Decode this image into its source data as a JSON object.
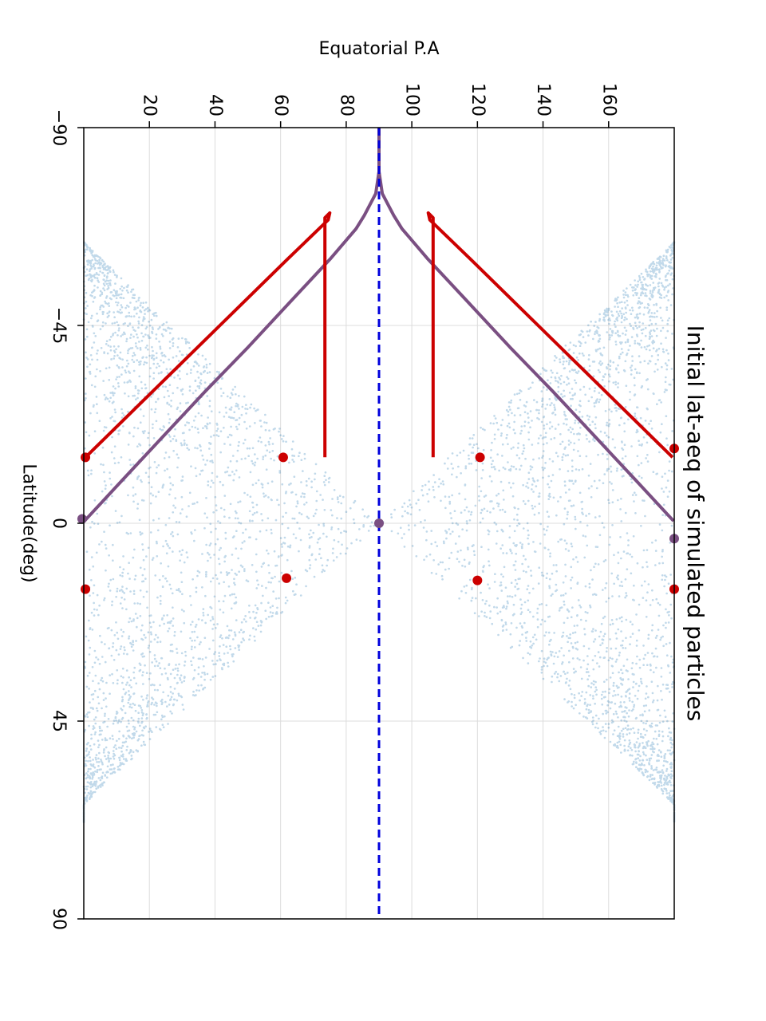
{
  "chart_data": {
    "type": "scatter",
    "title": "Initial lat-aeq of simulated particles",
    "xlabel": "Latitude(deg)",
    "ylabel": "Equatorial P.A",
    "orientation": "rotated-90-clockwise",
    "xlim": [
      -90,
      90
    ],
    "ylim": [
      0,
      180
    ],
    "x_ticks": [
      -90,
      -45,
      0,
      45,
      90
    ],
    "x_tick_labels": [
      "−90",
      "−45",
      "0",
      "45",
      "90"
    ],
    "y_ticks": [
      20,
      40,
      60,
      80,
      100,
      120,
      140,
      160
    ],
    "y_tick_labels": [
      "20",
      "40",
      "60",
      "80",
      "100",
      "120",
      "140",
      "160"
    ],
    "grid": true,
    "reference_line": {
      "y": 90,
      "style": "dashed",
      "color": "#0000dd"
    },
    "series": [
      {
        "kind": "scatter-cloud",
        "color": "#1f77b4",
        "description_of_extent": "double cone: lower band y from 90-90*(1-|x|/64) down to 0, upper band mirrored about 90",
        "lat_extent": [
          -64,
          68
        ]
      },
      {
        "kind": "line",
        "color": "#7a4f82",
        "x": [
          -0.5,
          -10,
          -20,
          -30,
          -40,
          -50,
          -60,
          -67,
          -70,
          -75,
          -80,
          -85,
          -90
        ],
        "y": [
          0.2,
          12,
          24.5,
          37,
          50,
          62.5,
          75,
          83,
          85.5,
          89,
          90,
          90,
          90
        ],
        "mirror_y_about": 90
      },
      {
        "kind": "line",
        "color": "#cc0000",
        "x": [
          -15,
          -30,
          -45,
          -60,
          -69,
          -70.6,
          -69.5,
          -15
        ],
        "y": [
          0.5,
          21,
          41.5,
          62,
          74.5,
          75,
          73.5,
          73.5
        ],
        "mirror_y_about": 90
      }
    ],
    "markers": {
      "red": {
        "color": "#cc0000",
        "points": [
          [
            -15,
            0.5
          ],
          [
            -15,
            60.8
          ],
          [
            15,
            0.5
          ],
          [
            12.5,
            61.8
          ],
          [
            -17,
            180
          ],
          [
            -15,
            120.8
          ],
          [
            15,
            180
          ],
          [
            13,
            120
          ]
        ]
      },
      "purple": {
        "color": "#7a4f82",
        "points": [
          [
            -1,
            -0.5
          ],
          [
            3.5,
            180
          ],
          [
            0,
            90
          ]
        ]
      }
    }
  }
}
